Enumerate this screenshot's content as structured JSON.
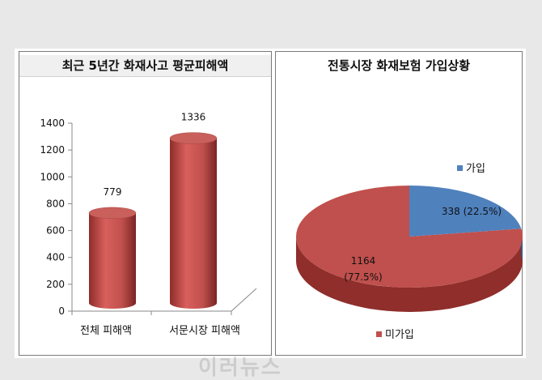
{
  "chart_data": [
    {
      "type": "bar",
      "title": "최근 5년간 화재사고 평균피해액",
      "categories": [
        "전체 피해액",
        "서문시장 피해액"
      ],
      "values": [
        779,
        1336
      ],
      "ylim": [
        0,
        1400
      ],
      "yticks": [
        0,
        200,
        400,
        600,
        800,
        1000,
        1200,
        1400
      ],
      "xlabel": "",
      "ylabel": "",
      "bar_color": "#c0504d",
      "grid": false
    },
    {
      "type": "pie",
      "title": "전통시장 화재보험 가입상황",
      "slices": [
        {
          "name": "가입",
          "value": 338,
          "label": "338 (22.5%)",
          "color": "#4f81bd"
        },
        {
          "name": "미가입",
          "value": 1164,
          "label_value": "1164",
          "label_pct": "(77.5%)",
          "color": "#c0504d"
        }
      ],
      "legend": "separate labels"
    }
  ],
  "watermark_text": "이러뉴스"
}
